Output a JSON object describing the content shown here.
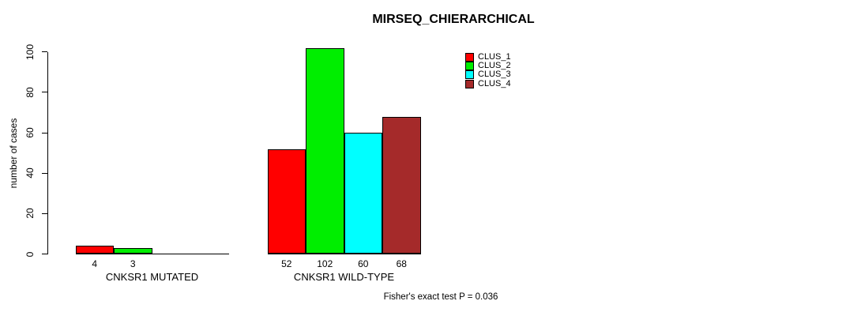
{
  "chart_data": {
    "type": "bar",
    "title": "MIRSEQ_CHIERARCHICAL",
    "xlabel": "",
    "ylabel": "number of cases",
    "ylim": [
      0,
      100
    ],
    "yticks": [
      0,
      20,
      40,
      60,
      80,
      100
    ],
    "grid": false,
    "legend_position": "top-right",
    "categories": [
      "CNKSR1 MUTATED",
      "CNKSR1 WILD-TYPE"
    ],
    "groups": [
      {
        "label": "CNKSR1 MUTATED",
        "values": [
          4,
          3,
          0,
          0
        ]
      },
      {
        "label": "CNKSR1 WILD-TYPE",
        "values": [
          52,
          102,
          60,
          68
        ]
      }
    ],
    "series": [
      {
        "name": "CLUS_1",
        "color": "#FF0000"
      },
      {
        "name": "CLUS_2",
        "color": "#00EE00"
      },
      {
        "name": "CLUS_3",
        "color": "#00FFFF"
      },
      {
        "name": "CLUS_4",
        "color": "#A52A2A"
      }
    ],
    "bar_value_labels_shown_when_zero": false,
    "annotation": "Fisher's exact test P = 0.036",
    "axis_color": "#000000",
    "background_color": "#FFFFFF"
  }
}
